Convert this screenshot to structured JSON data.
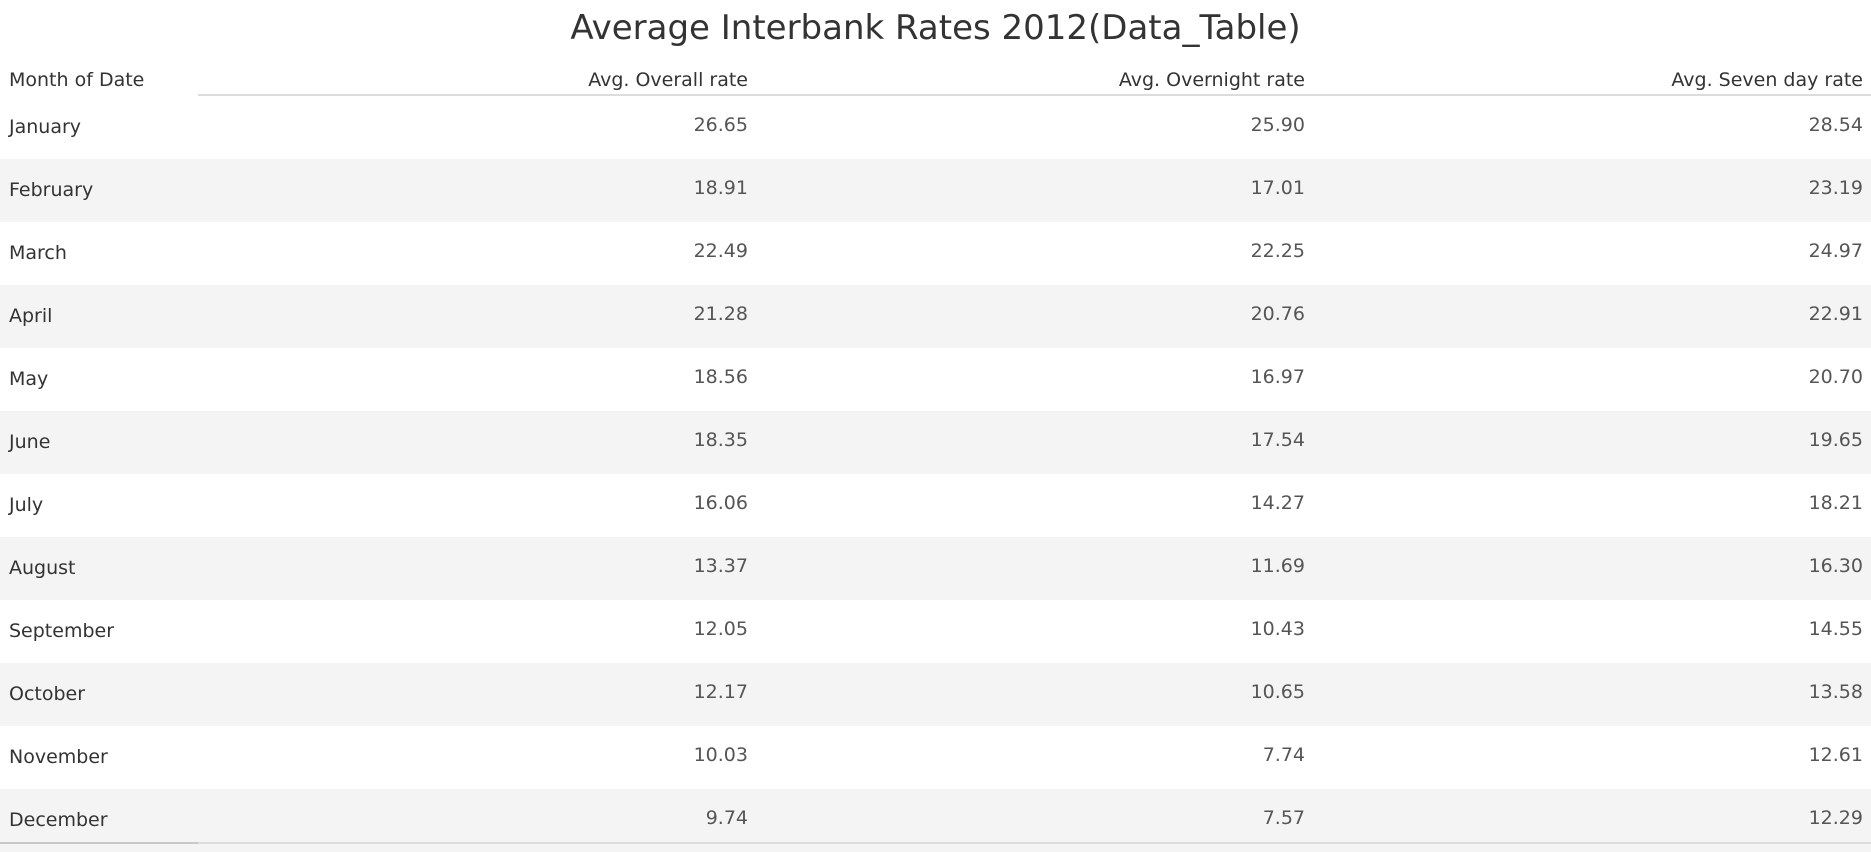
{
  "title": "Average Interbank Rates 2012(Data_Table)",
  "chart_data": {
    "type": "table",
    "title": "Average Interbank Rates 2012(Data_Table)",
    "columns": [
      "Month of Date",
      "Avg. Overall rate",
      "Avg. Overnight rate",
      "Avg. Seven day rate"
    ],
    "rows": [
      [
        "January",
        "26.65",
        "25.90",
        "28.54"
      ],
      [
        "February",
        "18.91",
        "17.01",
        "23.19"
      ],
      [
        "March",
        "22.49",
        "22.25",
        "24.97"
      ],
      [
        "April",
        "21.28",
        "20.76",
        "22.91"
      ],
      [
        "May",
        "18.56",
        "16.97",
        "20.70"
      ],
      [
        "June",
        "18.35",
        "17.54",
        "19.65"
      ],
      [
        "July",
        "16.06",
        "14.27",
        "18.21"
      ],
      [
        "August",
        "13.37",
        "11.69",
        "16.30"
      ],
      [
        "September",
        "12.05",
        "10.43",
        "14.55"
      ],
      [
        "October",
        "12.17",
        "10.65",
        "13.58"
      ],
      [
        "November",
        "10.03",
        "7.74",
        "12.61"
      ],
      [
        "December",
        "9.74",
        "7.57",
        "12.29"
      ]
    ],
    "row_band_color": "#f4f4f4",
    "rule_color": "#dcdcdc"
  }
}
